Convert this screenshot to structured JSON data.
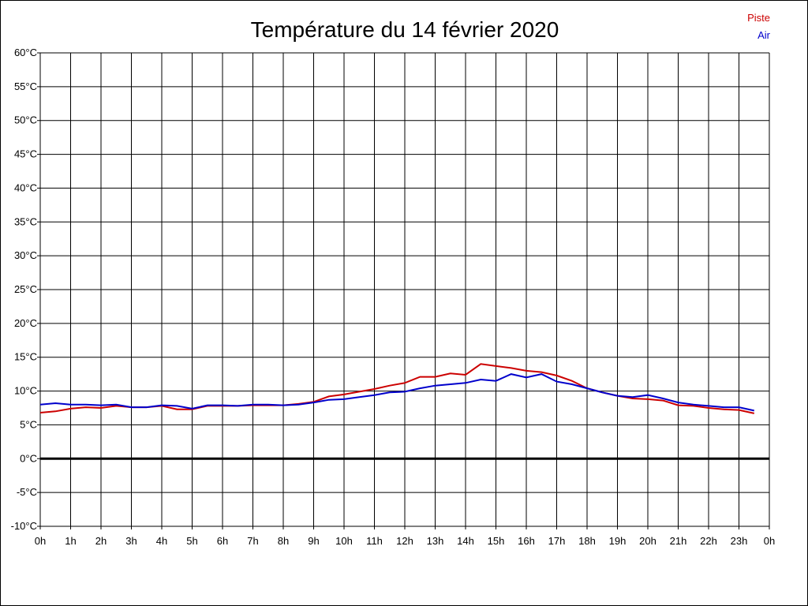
{
  "chart_data": {
    "type": "line",
    "title": "Température du 14 février 2020",
    "ylim": [
      -10,
      60
    ],
    "y_step": 5,
    "y_unit": "°C",
    "xlim": [
      0,
      24
    ],
    "x_ticks": [
      "0h",
      "1h",
      "2h",
      "3h",
      "4h",
      "5h",
      "6h",
      "7h",
      "8h",
      "9h",
      "10h",
      "11h",
      "12h",
      "13h",
      "14h",
      "15h",
      "16h",
      "17h",
      "18h",
      "19h",
      "20h",
      "21h",
      "22h",
      "23h",
      "0h"
    ],
    "grid": true,
    "legend_position": "top-right",
    "zero_line": true,
    "x": [
      0,
      0.5,
      1,
      1.5,
      2,
      2.5,
      3,
      3.5,
      4,
      4.5,
      5,
      5.5,
      6,
      6.5,
      7,
      7.5,
      8,
      8.5,
      9,
      9.5,
      10,
      10.5,
      11,
      11.5,
      12,
      12.5,
      13,
      13.5,
      14,
      14.5,
      15,
      15.5,
      16,
      16.5,
      17,
      17.5,
      18,
      18.5,
      19,
      19.5,
      20,
      20.5,
      21,
      21.5,
      22,
      22.5,
      23,
      23.5
    ],
    "series": [
      {
        "name": "Piste",
        "color": "#cc0000",
        "values": [
          6.8,
          7.0,
          7.4,
          7.6,
          7.5,
          7.8,
          7.6,
          7.6,
          7.8,
          7.3,
          7.3,
          7.8,
          7.8,
          7.8,
          7.9,
          7.9,
          7.9,
          8.1,
          8.4,
          9.2,
          9.5,
          9.9,
          10.3,
          10.8,
          11.2,
          12.1,
          12.1,
          12.6,
          12.4,
          14.0,
          13.7,
          13.4,
          13.0,
          12.8,
          12.3,
          11.5,
          10.4,
          9.8,
          9.3,
          8.9,
          8.8,
          8.6,
          7.9,
          7.8,
          7.5,
          7.3,
          7.2,
          6.7
        ]
      },
      {
        "name": "Air",
        "color": "#0000cc",
        "values": [
          8.0,
          8.2,
          8.0,
          8.0,
          7.9,
          8.0,
          7.6,
          7.6,
          7.9,
          7.8,
          7.4,
          7.9,
          7.9,
          7.8,
          8.0,
          8.0,
          7.9,
          8.0,
          8.3,
          8.7,
          8.8,
          9.1,
          9.4,
          9.8,
          9.9,
          10.4,
          10.8,
          11.0,
          11.2,
          11.7,
          11.5,
          12.5,
          12.0,
          12.5,
          11.4,
          11.0,
          10.4,
          9.8,
          9.3,
          9.1,
          9.4,
          8.9,
          8.3,
          8.0,
          7.8,
          7.6,
          7.6,
          7.1
        ]
      }
    ]
  }
}
